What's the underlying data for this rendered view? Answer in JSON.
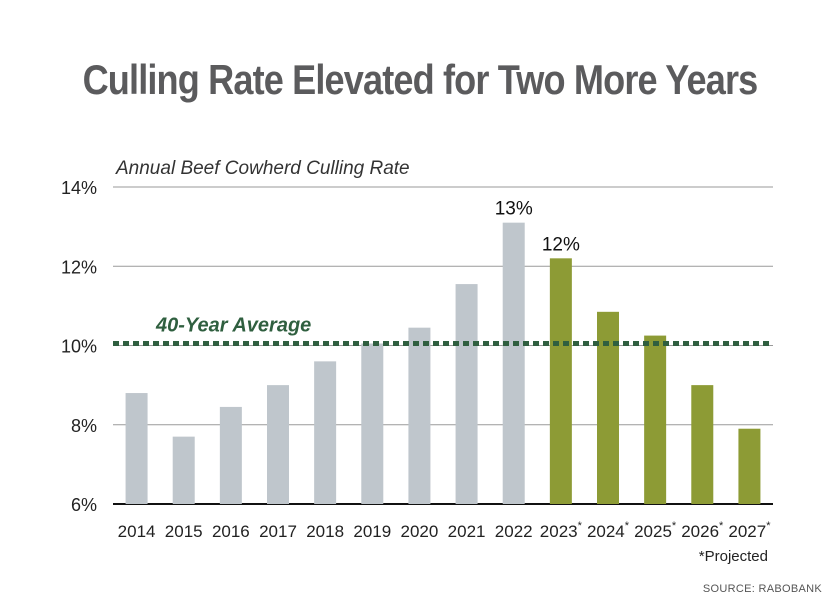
{
  "header": {
    "title": "Culling Rate Elevated for Two More Years",
    "subtitle": "Annual Beef Cowherd Culling Rate"
  },
  "footer": {
    "projected_note": "*Projected",
    "source": "SOURCE: RABOBANK"
  },
  "colors": {
    "historical_bar": "#bfc6cc",
    "projected_bar": "#8d9b35",
    "average_line": "#2f5f3f",
    "grid": "#9a9a9a",
    "axis": "#111111",
    "title": "#5b5b5d"
  },
  "chart_data": {
    "type": "bar",
    "title": "Culling Rate Elevated for Two More Years",
    "subtitle": "Annual Beef Cowherd Culling Rate",
    "categories": [
      "2014",
      "2015",
      "2016",
      "2017",
      "2018",
      "2019",
      "2020",
      "2021",
      "2022",
      "2023",
      "2024",
      "2025",
      "2026",
      "2027"
    ],
    "projected_marker": [
      "",
      "",
      "",
      "",
      "",
      "",
      "",
      "",
      "",
      "*",
      "*",
      "*",
      "*",
      "*"
    ],
    "values": [
      8.8,
      7.7,
      8.45,
      9.0,
      9.6,
      10.05,
      10.45,
      11.55,
      13.1,
      12.2,
      10.85,
      10.25,
      9.0,
      7.9
    ],
    "projected": [
      false,
      false,
      false,
      false,
      false,
      false,
      false,
      false,
      false,
      true,
      true,
      true,
      true,
      true
    ],
    "data_labels": [
      "",
      "",
      "",
      "",
      "",
      "",
      "",
      "",
      "13%",
      "12%",
      "",
      "",
      "",
      ""
    ],
    "ylim": [
      6,
      14
    ],
    "yticks": [
      6,
      8,
      10,
      12,
      14
    ],
    "ytick_labels": [
      "6%",
      "8%",
      "10%",
      "12%",
      "14%"
    ],
    "grid": true,
    "reference_line": {
      "label": "40-Year Average",
      "value": 10.05,
      "style": "dotted"
    }
  }
}
